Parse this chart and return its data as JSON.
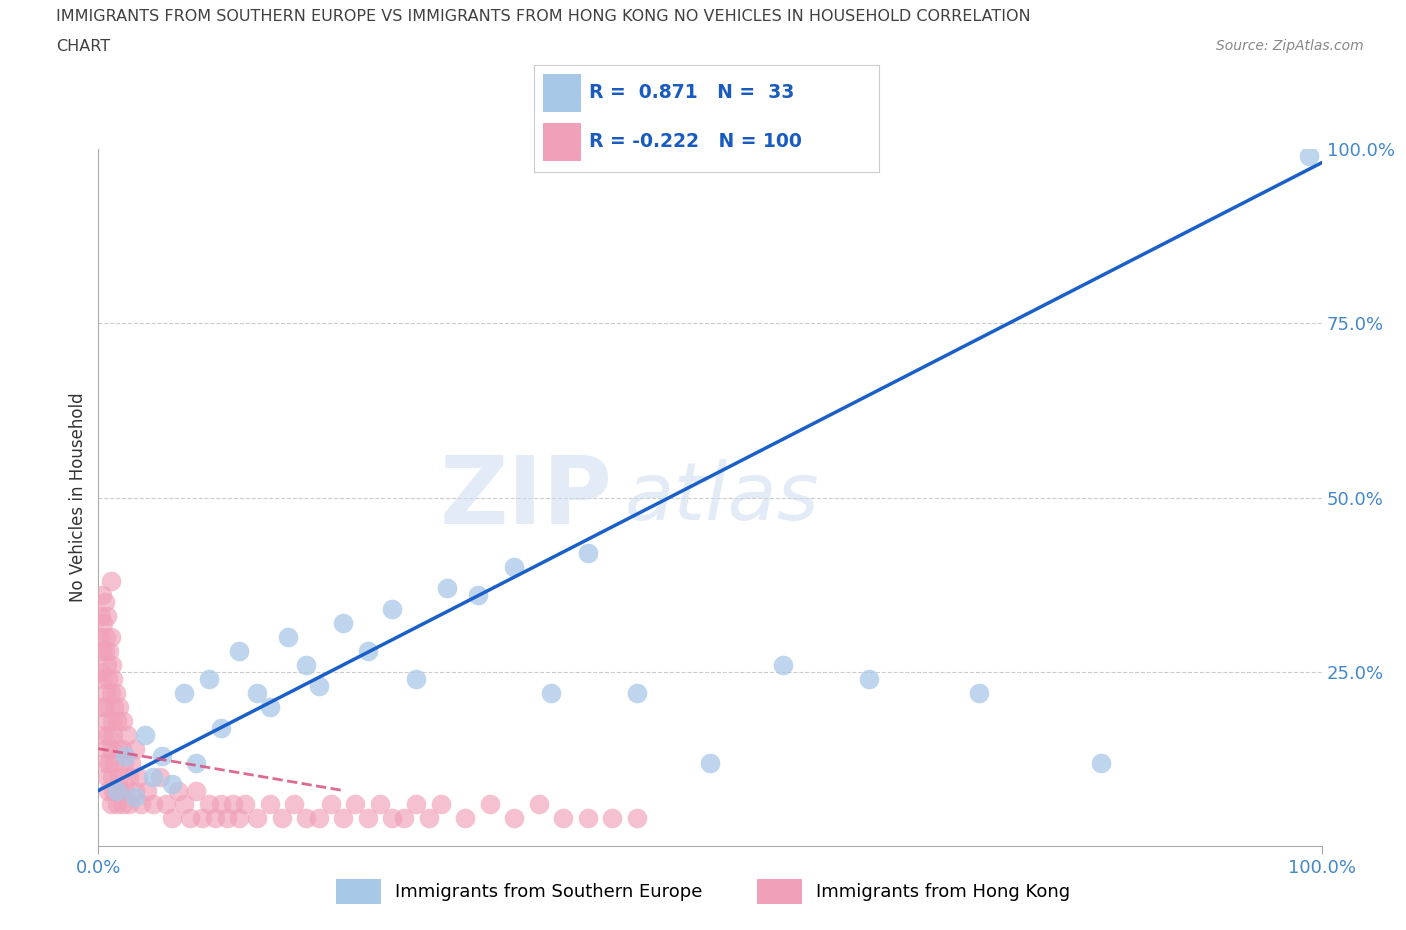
{
  "title_line1": "IMMIGRANTS FROM SOUTHERN EUROPE VS IMMIGRANTS FROM HONG KONG NO VEHICLES IN HOUSEHOLD CORRELATION",
  "title_line2": "CHART",
  "source": "Source: ZipAtlas.com",
  "ylabel": "No Vehicles in Household",
  "xlim": [
    0,
    100
  ],
  "ylim": [
    0,
    100
  ],
  "xtick_vals": [
    0,
    100
  ],
  "xtick_labels": [
    "0.0%",
    "100.0%"
  ],
  "ytick_vals": [
    25,
    50,
    75,
    100
  ],
  "ytick_labels": [
    "25.0%",
    "50.0%",
    "75.0%",
    "100.0%"
  ],
  "blue_R": 0.871,
  "blue_N": 33,
  "pink_R": -0.222,
  "pink_N": 100,
  "blue_color": "#a8c8e8",
  "pink_color": "#f0a0b8",
  "blue_line_color": "#1a60c8",
  "pink_line_color": "#d85080",
  "blue_label": "Immigrants from Southern Europe",
  "pink_label": "Immigrants from Hong Kong",
  "watermark_zip": "ZIP",
  "watermark_atlas": "atlas",
  "background_color": "#ffffff",
  "title_color": "#404040",
  "axis_tick_color": "#4488cc",
  "legend_text_color": "#1a5bbf",
  "blue_line_x": [
    0,
    100
  ],
  "blue_line_y": [
    8,
    98
  ],
  "pink_line_x": [
    0,
    20
  ],
  "pink_line_y": [
    14,
    8
  ],
  "blue_scatter_x": [
    1.5,
    2.2,
    3.0,
    3.8,
    4.5,
    5.2,
    6.0,
    7.0,
    8.0,
    9.0,
    10.0,
    11.5,
    13.0,
    14.0,
    15.5,
    17.0,
    18.0,
    20.0,
    22.0,
    24.0,
    26.0,
    28.5,
    31.0,
    34.0,
    37.0,
    40.0,
    44.0,
    50.0,
    56.0,
    63.0,
    72.0,
    82.0,
    99.0
  ],
  "blue_scatter_y": [
    8.0,
    13.0,
    7.0,
    16.0,
    10.0,
    13.0,
    9.0,
    22.0,
    12.0,
    24.0,
    17.0,
    28.0,
    22.0,
    20.0,
    30.0,
    26.0,
    23.0,
    32.0,
    28.0,
    34.0,
    24.0,
    37.0,
    36.0,
    40.0,
    22.0,
    42.0,
    22.0,
    12.0,
    26.0,
    24.0,
    22.0,
    12.0,
    99.0
  ],
  "pink_scatter_x": [
    0.1,
    0.2,
    0.2,
    0.3,
    0.3,
    0.3,
    0.4,
    0.4,
    0.4,
    0.5,
    0.5,
    0.5,
    0.5,
    0.6,
    0.6,
    0.6,
    0.7,
    0.7,
    0.7,
    0.7,
    0.8,
    0.8,
    0.8,
    0.9,
    0.9,
    1.0,
    1.0,
    1.0,
    1.0,
    1.0,
    1.1,
    1.1,
    1.1,
    1.2,
    1.2,
    1.2,
    1.3,
    1.3,
    1.4,
    1.4,
    1.5,
    1.5,
    1.6,
    1.7,
    1.7,
    1.8,
    1.9,
    2.0,
    2.0,
    2.1,
    2.2,
    2.3,
    2.5,
    2.5,
    2.7,
    3.0,
    3.0,
    3.2,
    3.5,
    4.0,
    4.5,
    5.0,
    5.5,
    6.0,
    6.5,
    7.0,
    7.5,
    8.0,
    8.5,
    9.0,
    9.5,
    10.0,
    10.5,
    11.0,
    11.5,
    12.0,
    13.0,
    14.0,
    15.0,
    16.0,
    17.0,
    18.0,
    19.0,
    20.0,
    21.0,
    22.0,
    23.0,
    24.0,
    25.0,
    26.0,
    27.0,
    28.0,
    30.0,
    32.0,
    34.0,
    36.0,
    38.0,
    40.0,
    42.0,
    44.0
  ],
  "pink_scatter_y": [
    30.0,
    25.0,
    33.0,
    20.0,
    28.0,
    36.0,
    16.0,
    24.0,
    32.0,
    12.0,
    20.0,
    28.0,
    35.0,
    14.0,
    22.0,
    30.0,
    10.0,
    18.0,
    26.0,
    33.0,
    8.0,
    16.0,
    24.0,
    12.0,
    28.0,
    6.0,
    14.0,
    22.0,
    30.0,
    38.0,
    10.0,
    18.0,
    26.0,
    8.0,
    16.0,
    24.0,
    12.0,
    20.0,
    8.0,
    22.0,
    6.0,
    18.0,
    14.0,
    10.0,
    20.0,
    8.0,
    14.0,
    6.0,
    18.0,
    12.0,
    8.0,
    16.0,
    10.0,
    6.0,
    12.0,
    8.0,
    14.0,
    10.0,
    6.0,
    8.0,
    6.0,
    10.0,
    6.0,
    4.0,
    8.0,
    6.0,
    4.0,
    8.0,
    4.0,
    6.0,
    4.0,
    6.0,
    4.0,
    6.0,
    4.0,
    6.0,
    4.0,
    6.0,
    4.0,
    6.0,
    4.0,
    4.0,
    6.0,
    4.0,
    6.0,
    4.0,
    6.0,
    4.0,
    4.0,
    6.0,
    4.0,
    6.0,
    4.0,
    6.0,
    4.0,
    6.0,
    4.0,
    4.0,
    4.0,
    4.0
  ]
}
